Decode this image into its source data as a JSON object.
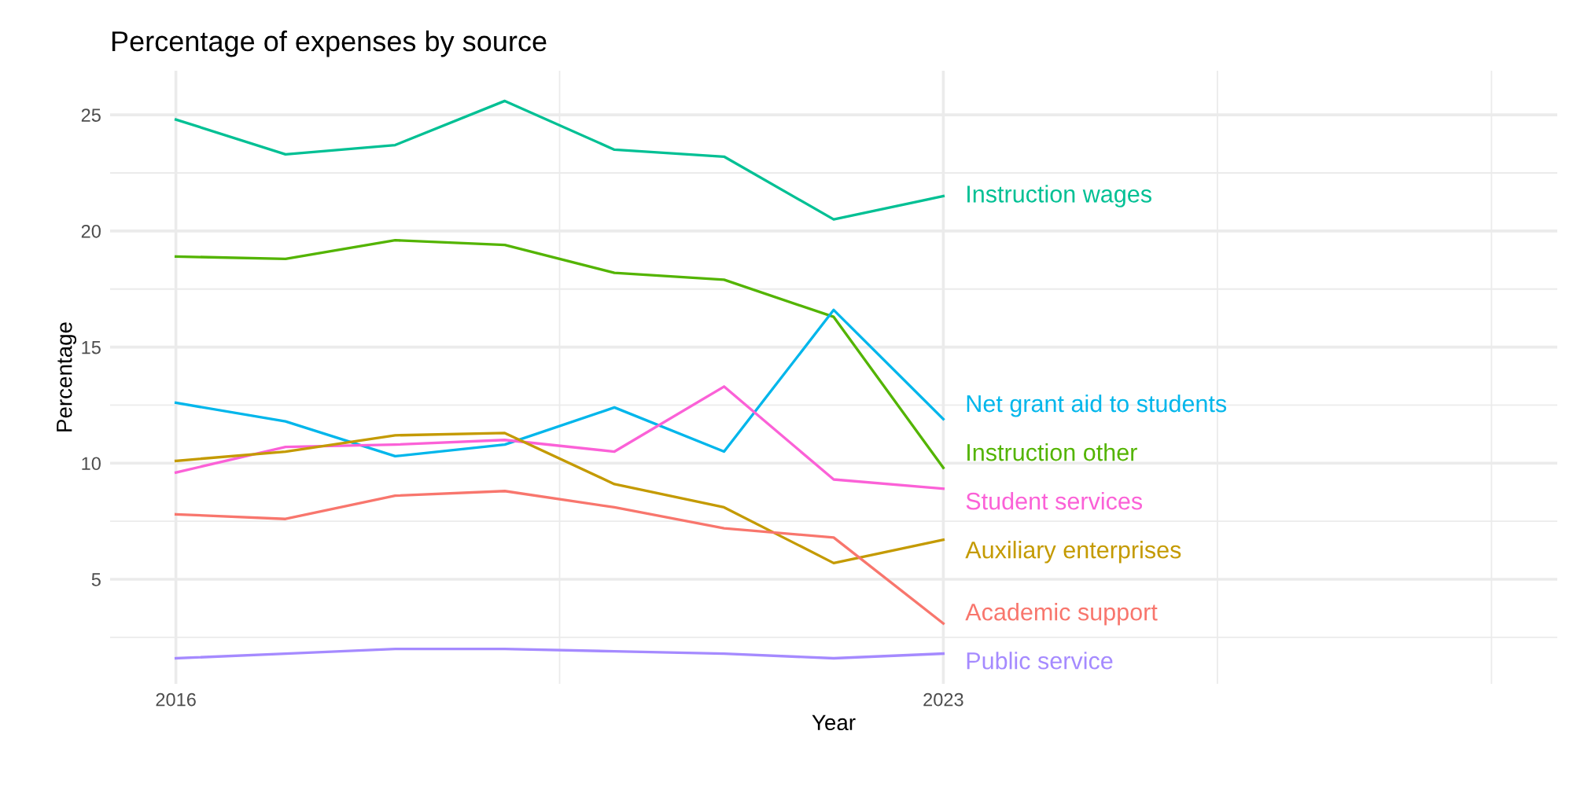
{
  "chart_data": {
    "type": "line",
    "title": "Percentage of expenses by source",
    "xlabel": "Year",
    "ylabel": "Percentage",
    "x": [
      2016,
      2017,
      2018,
      2019,
      2020,
      2021,
      2022,
      2023
    ],
    "series": [
      {
        "name": "Instruction wages",
        "color": "#00C094",
        "values": [
          24.8,
          23.3,
          23.7,
          25.6,
          23.5,
          23.2,
          20.5,
          21.5
        ]
      },
      {
        "name": "Instruction other",
        "color": "#53B400",
        "values": [
          18.9,
          18.8,
          19.6,
          19.4,
          18.2,
          17.9,
          16.3,
          9.8
        ]
      },
      {
        "name": "Net grant aid to students",
        "color": "#00B6EB",
        "values": [
          12.6,
          11.8,
          10.3,
          10.8,
          12.4,
          10.5,
          16.6,
          11.9
        ]
      },
      {
        "name": "Student services",
        "color": "#FB61D7",
        "values": [
          9.6,
          10.7,
          10.8,
          11.0,
          10.5,
          13.3,
          9.3,
          8.9
        ]
      },
      {
        "name": "Auxiliary enterprises",
        "color": "#C49A00",
        "values": [
          10.1,
          10.5,
          11.2,
          11.3,
          9.1,
          8.1,
          5.7,
          6.7
        ]
      },
      {
        "name": "Academic support",
        "color": "#F8766D",
        "values": [
          7.8,
          7.6,
          8.6,
          8.8,
          8.1,
          7.2,
          6.8,
          3.1
        ]
      },
      {
        "name": "Public service",
        "color": "#A58AFF",
        "values": [
          1.6,
          1.8,
          2.0,
          2.0,
          1.9,
          1.8,
          1.6,
          1.8
        ]
      }
    ],
    "xlim": [
      2015.4,
      2028.6
    ],
    "xticks": [
      2016,
      {
        "value": 2019.5,
        "label": null
      },
      2023,
      {
        "value": 2025.5,
        "label": null
      },
      {
        "value": 2028,
        "label": null
      }
    ],
    "ylim": [
      0.5,
      26.9
    ],
    "yticks": [
      {
        "value": 2.5,
        "label": null
      },
      5,
      {
        "value": 7.5,
        "label": null
      },
      10,
      {
        "value": 12.5,
        "label": null
      },
      15,
      {
        "value": 17.5,
        "label": null
      },
      20,
      {
        "value": 22.5,
        "label": null
      },
      25
    ],
    "grid": true,
    "legend": "right",
    "marker": "none",
    "line_style": "solid"
  }
}
